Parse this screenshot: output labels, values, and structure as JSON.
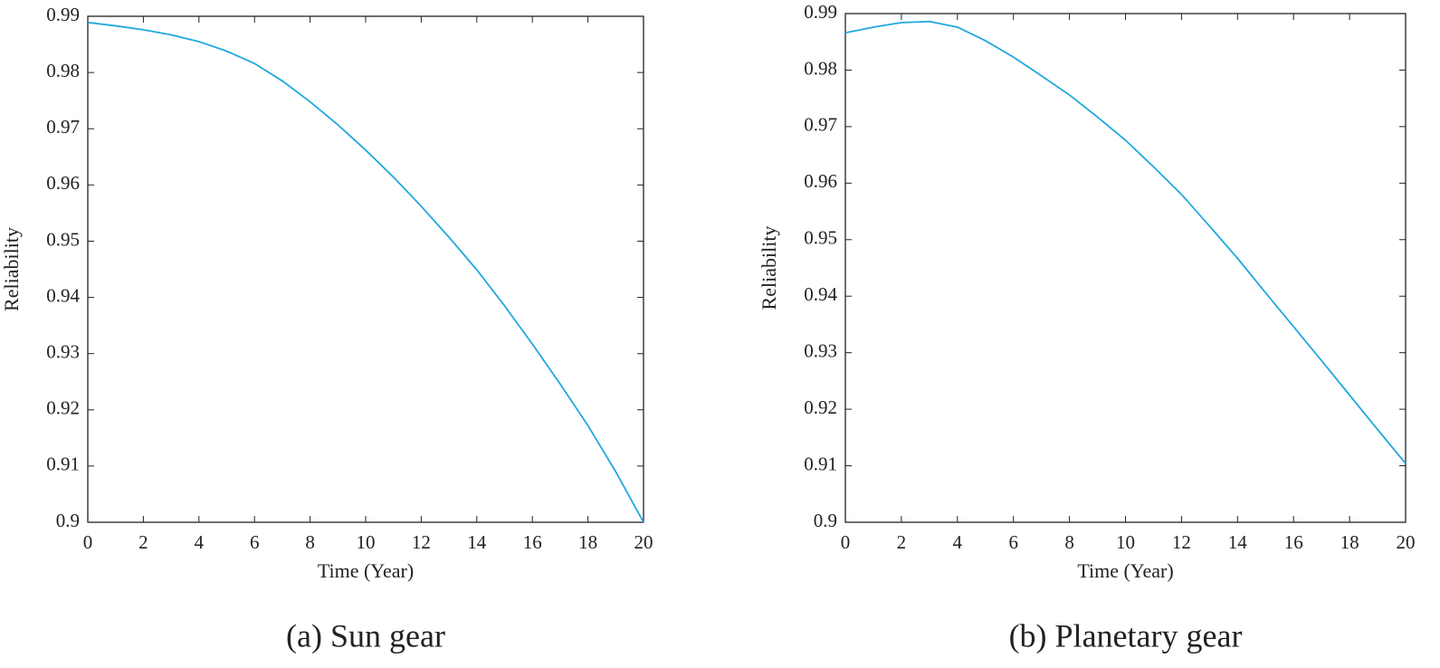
{
  "chart_data": [
    {
      "type": "line",
      "caption": "(a) Sun gear",
      "xlabel": "Time (Year)",
      "ylabel": "Reliability",
      "x": [
        0,
        1,
        2,
        3,
        4,
        5,
        6,
        7,
        8,
        9,
        10,
        11,
        12,
        13,
        14,
        15,
        16,
        17,
        18,
        19,
        20
      ],
      "values": [
        0.9889,
        0.9883,
        0.9876,
        0.9867,
        0.9855,
        0.9838,
        0.9816,
        0.9785,
        0.9748,
        0.9707,
        0.9662,
        0.9614,
        0.9562,
        0.9507,
        0.9449,
        0.9385,
        0.9317,
        0.9246,
        0.9172,
        0.909,
        0.9
      ],
      "color": "#1fa8df",
      "xlim": [
        0,
        20
      ],
      "xticks": [
        0,
        2,
        4,
        6,
        8,
        10,
        12,
        14,
        16,
        18,
        20
      ],
      "ylim": [
        0.9,
        0.99
      ],
      "yticks": [
        0.9,
        0.91,
        0.92,
        0.93,
        0.94,
        0.95,
        0.96,
        0.97,
        0.98,
        0.99
      ]
    },
    {
      "type": "line",
      "caption": "(b) Planetary gear",
      "xlabel": "Time (Year)",
      "ylabel": "Reliability",
      "x": [
        0,
        1,
        2,
        3,
        4,
        5,
        6,
        7,
        8,
        9,
        10,
        11,
        12,
        13,
        14,
        15,
        16,
        17,
        18,
        19,
        20
      ],
      "values": [
        0.9866,
        0.9876,
        0.9884,
        0.9886,
        0.9876,
        0.9852,
        0.9823,
        0.979,
        0.9756,
        0.9717,
        0.9676,
        0.9629,
        0.958,
        0.9524,
        0.9467,
        0.9406,
        0.9346,
        0.9286,
        0.9225,
        0.9164,
        0.9104
      ],
      "color": "#1fa8df",
      "xlim": [
        0,
        20
      ],
      "xticks": [
        0,
        2,
        4,
        6,
        8,
        10,
        12,
        14,
        16,
        18,
        20
      ],
      "ylim": [
        0.9,
        0.99
      ],
      "yticks": [
        0.9,
        0.91,
        0.92,
        0.93,
        0.94,
        0.95,
        0.96,
        0.97,
        0.98,
        0.99
      ]
    }
  ]
}
